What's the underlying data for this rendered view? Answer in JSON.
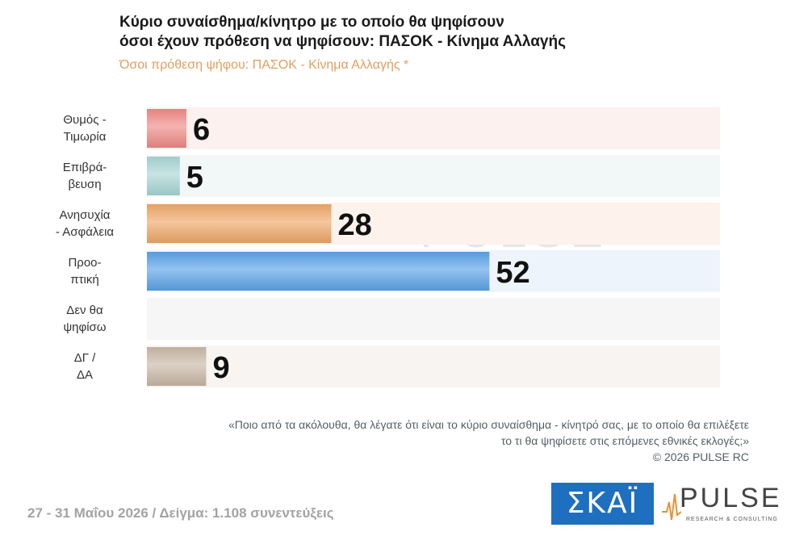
{
  "header": {
    "title_line1": "Κύριο συναίσθημα/κίνητρο με το οποίο θα ψηφίσουν",
    "title_line2": "όσοι έχουν πρόθεση να ψηφίσουν: ΠΑΣΟΚ - Κίνημα Αλλαγής",
    "subtitle": "Όσοι πρόθεση ψήφου: ΠΑΣΟΚ - Κίνημα Αλλαγής *"
  },
  "chart_data": {
    "type": "bar",
    "orientation": "horizontal",
    "categories": [
      {
        "line1": "Θυμός -",
        "line2": "Τιμωρία"
      },
      {
        "line1": "Επιβρά-",
        "line2": "βευση"
      },
      {
        "line1": "Ανησυχία",
        "line2": "- Ασφάλεια"
      },
      {
        "line1": "Προο-",
        "line2": "πτική"
      },
      {
        "line1": "Δεν θα",
        "line2": "ψηφίσω"
      },
      {
        "line1": "ΔΓ /",
        "line2": "ΔΑ"
      }
    ],
    "values": [
      6,
      5,
      28,
      52,
      null,
      9
    ],
    "value_labels": [
      "6",
      "5",
      "28",
      "52",
      "",
      "9"
    ],
    "colors": [
      "#f08a86",
      "#a9d6d6",
      "#f0a868",
      "#5aa3e8",
      "#d0d0d0",
      "#c9b8a6"
    ],
    "row_bg_colors": [
      "#fdf1ef",
      "#f2f7f8",
      "#fdf3ec",
      "#eef4fb",
      "#f6f6f6",
      "#f7f4f1"
    ],
    "xlim": [
      0,
      87
    ],
    "grid": false,
    "legend": "none"
  },
  "watermark": {
    "word": "PULSE",
    "tagline": "RESEARCH & CONSULTING"
  },
  "note": {
    "question_line1": "«Ποιο από τα ακόλουθα, θα λέγατε ότι είναι το κύριο συναίσθημα - κίνητρό σας, με το οποίο θα επιλέξετε",
    "question_line2": "το τι θα ψηφίσετε στις επόμενες εθνικές εκλογές;»",
    "copyright": "©  2026  PULSE RC"
  },
  "footer": {
    "text": "27 - 31  Μαΐου 2026  /  Δείγμα:  1.108 συνεντεύξεις"
  },
  "logos": {
    "skai": "ΣΚΑΪ",
    "pulse": "PULSE",
    "pulse_tagline": "RESEARCH & CONSULTING"
  }
}
